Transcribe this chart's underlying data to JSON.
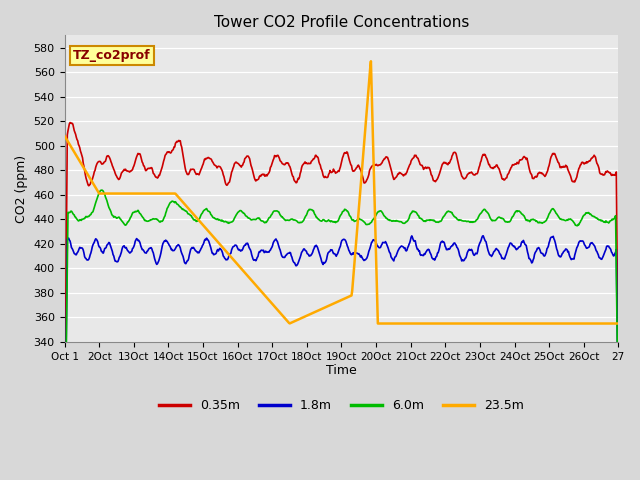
{
  "title": "Tower CO2 Profile Concentrations",
  "xlabel": "Time",
  "ylabel": "CO2 (ppm)",
  "ylim": [
    340,
    590
  ],
  "yticks": [
    340,
    360,
    380,
    400,
    420,
    440,
    460,
    480,
    500,
    520,
    540,
    560,
    580
  ],
  "xlim": [
    11,
    27
  ],
  "colors": {
    "red": "#cc0000",
    "blue": "#0000cc",
    "green": "#00bb00",
    "orange": "#ffaa00"
  },
  "legend_labels": [
    "0.35m",
    "1.8m",
    "6.0m",
    "23.5m"
  ],
  "annotation_label": "TZ_co2prof",
  "annotation_facecolor": "#ffff99",
  "annotation_edgecolor": "#cc8800",
  "annotation_textcolor": "#880000",
  "fig_facecolor": "#d8d8d8",
  "ax_facecolor": "#e8e8e8",
  "grid_color": "#ffffff",
  "num_points": 800,
  "seed": 12345,
  "xtick_positions": [
    11,
    12,
    13,
    14,
    15,
    16,
    17,
    18,
    19,
    20,
    21,
    22,
    23,
    24,
    25,
    26,
    27
  ],
  "xtick_labels": [
    "Oct 1",
    "2Oct",
    "13Oct",
    "14Oct",
    "15Oct",
    "16Oct",
    "17Oct",
    "18Oct",
    "19Oct",
    "20Oct",
    "21Oct",
    "22Oct",
    "23Oct",
    "24Oct",
    "25Oct",
    "26Oct",
    "27"
  ],
  "orange_keypoints_x": [
    11,
    12,
    14.2,
    17.5,
    19.3,
    19.85,
    20.05,
    20.35
  ],
  "orange_keypoints_y": [
    508,
    461,
    461,
    355,
    378,
    570,
    355,
    355
  ]
}
